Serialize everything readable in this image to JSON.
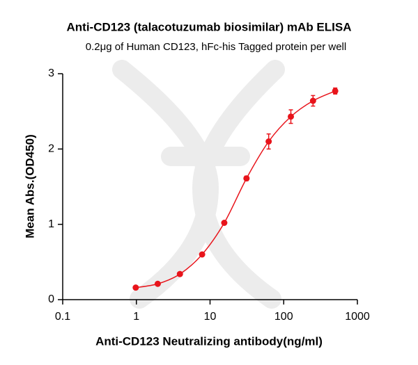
{
  "chart_data": {
    "type": "scatter",
    "title": "Anti-CD123 (talacotuzumab biosimilar) mAb ELISA",
    "subtitle": "0.2μg of Human CD123, hFc-his Tagged protein per well",
    "x_label": "Anti-CD123 Neutralizing antibody(ng/ml)",
    "y_label": "Mean Abs.(OD450)",
    "x": [
      0.98,
      1.95,
      3.9,
      7.8,
      15.6,
      31.25,
      62.5,
      125,
      250,
      500
    ],
    "values": [
      0.16,
      0.21,
      0.34,
      0.6,
      1.02,
      1.61,
      2.1,
      2.43,
      2.64,
      2.77
    ],
    "errors": [
      0.01,
      0.01,
      0.01,
      0.02,
      0.02,
      0.03,
      0.1,
      0.09,
      0.07,
      0.04
    ],
    "color": "#e8141b",
    "xscale": "log",
    "xlim": [
      0.1,
      1000
    ],
    "xticks": [
      0.1,
      1,
      10,
      100,
      1000
    ],
    "ylim": [
      0,
      3
    ],
    "yticks": [
      0,
      1,
      2,
      3
    ]
  }
}
